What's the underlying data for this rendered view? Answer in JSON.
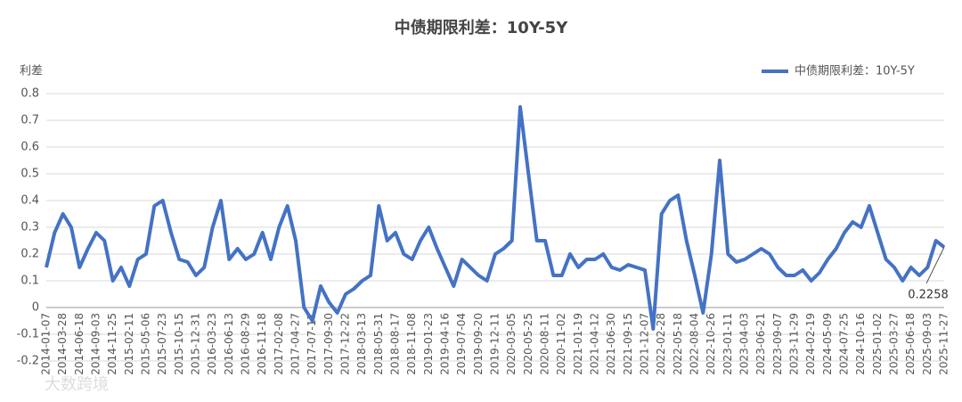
{
  "chart_data": {
    "type": "line",
    "title": "中债期限利差：10Y-5Y",
    "y_label": "利差",
    "watermark": "大数跨境",
    "categories": [
      "2014-01-07",
      null,
      "2014-03-28",
      null,
      "2014-06-18",
      null,
      "2014-09-03",
      null,
      "2014-11-25",
      null,
      "2015-02-11",
      null,
      "2015-05-06",
      null,
      "2015-07-23",
      null,
      "2015-10-15",
      null,
      "2015-12-31",
      null,
      "2016-03-23",
      null,
      "2016-06-13",
      null,
      "2016-08-29",
      null,
      "2016-11-18",
      null,
      "2017-02-08",
      null,
      "2017-04-27",
      null,
      "2017-07-17",
      null,
      "2017-09-30",
      null,
      "2017-12-22",
      null,
      "2018-03-13",
      null,
      "2018-05-31",
      null,
      "2018-08-17",
      null,
      "2018-11-08",
      null,
      "2019-01-23",
      null,
      "2019-04-16",
      null,
      "2019-07-04",
      null,
      "2019-09-20",
      null,
      "2019-12-11",
      null,
      "2020-03-05",
      null,
      "2020-05-25",
      null,
      "2020-08-11",
      null,
      "2020-11-02",
      null,
      "2021-01-19",
      null,
      "2021-04-12",
      null,
      "2021-06-30",
      null,
      "2021-09-15",
      null,
      "2021-12-07",
      null,
      "2022-02-28",
      null,
      "2022-05-18",
      null,
      "2022-08-04",
      null,
      "2022-10-26",
      null,
      "2023-01-11",
      null,
      "2023-04-03",
      null,
      "2023-06-21",
      null,
      "2023-09-07",
      null,
      "2023-11-29",
      null,
      "2024-02-19",
      null,
      "2024-05-09",
      null,
      "2024-07-25",
      null,
      "2024-10-16",
      null,
      "2025-01-02",
      null,
      "2025-03-27",
      null,
      "2025-06-18",
      null,
      "2025-09-03",
      null,
      "2025-11-27"
    ],
    "series": [
      {
        "name": "中债期限利差：10Y-5Y",
        "color": "#4472c4",
        "values": [
          0.15,
          0.28,
          0.35,
          0.3,
          0.15,
          0.22,
          0.28,
          0.25,
          0.1,
          0.15,
          0.08,
          0.18,
          0.2,
          0.38,
          0.4,
          0.28,
          0.18,
          0.17,
          0.12,
          0.15,
          0.3,
          0.4,
          0.18,
          0.22,
          0.18,
          0.2,
          0.28,
          0.18,
          0.3,
          0.38,
          0.25,
          0.0,
          -0.05,
          0.08,
          0.02,
          -0.02,
          0.05,
          0.07,
          0.1,
          0.12,
          0.38,
          0.25,
          0.28,
          0.2,
          0.18,
          0.25,
          0.3,
          0.22,
          0.15,
          0.08,
          0.18,
          0.15,
          0.12,
          0.1,
          0.2,
          0.22,
          0.25,
          0.75,
          0.5,
          0.25,
          0.25,
          0.12,
          0.12,
          0.2,
          0.15,
          0.18,
          0.18,
          0.2,
          0.15,
          0.14,
          0.16,
          0.15,
          0.14,
          -0.08,
          0.35,
          0.4,
          0.42,
          0.25,
          0.12,
          -0.02,
          0.2,
          0.55,
          0.2,
          0.17,
          0.18,
          0.2,
          0.22,
          0.2,
          0.15,
          0.12,
          0.12,
          0.14,
          0.1,
          0.13,
          0.18,
          0.22,
          0.28,
          0.32,
          0.3,
          0.38,
          0.28,
          0.18,
          0.15,
          0.1,
          0.15,
          0.12,
          0.15,
          0.25,
          0.2258
        ]
      }
    ],
    "ylim": [
      -0.2,
      0.8
    ],
    "yticks": [
      -0.2,
      -0.1,
      0,
      0.1,
      0.2,
      0.3,
      0.4,
      0.5,
      0.6,
      0.7,
      0.8
    ],
    "grid": true,
    "legend": "top-right"
  }
}
